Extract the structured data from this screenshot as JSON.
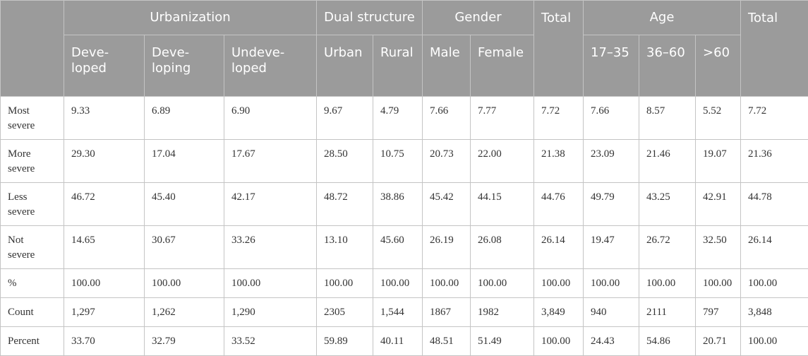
{
  "header": {
    "groups": {
      "urbanization": "Urbanization",
      "dual_structure": "Dual structure",
      "gender": "Gender",
      "total1": "Total",
      "age": "Age",
      "total2": "Total"
    },
    "subheaders": {
      "developed": "Deve-\nloped",
      "developing": "Deve-\nloping",
      "undeveloped": "Undeve-\nloped",
      "urban": "Urban",
      "rural": "Rural",
      "male": "Male",
      "female": "Female",
      "age_17_35": "17–35",
      "age_36_60": "36–60",
      "age_60plus": ">60"
    }
  },
  "rows": [
    {
      "label": "Most\nsevere",
      "cells": [
        "9.33",
        "6.89",
        "6.90",
        "9.67",
        "4.79",
        "7.66",
        "7.77",
        "7.72",
        "7.66",
        "8.57",
        "5.52",
        "7.72"
      ]
    },
    {
      "label": "More\nsevere",
      "cells": [
        "29.30",
        "17.04",
        "17.67",
        "28.50",
        "10.75",
        "20.73",
        "22.00",
        "21.38",
        "23.09",
        "21.46",
        "19.07",
        "21.36"
      ]
    },
    {
      "label": "Less\nsevere",
      "cells": [
        "46.72",
        "45.40",
        "42.17",
        "48.72",
        "38.86",
        "45.42",
        "44.15",
        "44.76",
        "49.79",
        "43.25",
        "42.91",
        "44.78"
      ]
    },
    {
      "label": "Not\nsevere",
      "cells": [
        "14.65",
        "30.67",
        "33.26",
        "13.10",
        "45.60",
        "26.19",
        "26.08",
        "26.14",
        "19.47",
        "26.72",
        "32.50",
        "26.14"
      ]
    },
    {
      "label": "%",
      "cells": [
        "100.00",
        "100.00",
        "100.00",
        "100.00",
        "100.00",
        "100.00",
        "100.00",
        "100.00",
        "100.00",
        "100.00",
        "100.00",
        "100.00"
      ]
    },
    {
      "label": "Count",
      "cells": [
        "1,297",
        "1,262",
        "1,290",
        "2305",
        "1,544",
        "1867",
        "1982",
        "3,849",
        "940",
        "2111",
        "797",
        "3,848"
      ]
    },
    {
      "label": "Percent",
      "cells": [
        "33.70",
        "32.79",
        "33.52",
        "59.89",
        "40.11",
        "48.51",
        "51.49",
        "100.00",
        "24.43",
        "54.86",
        "20.71",
        "100.00"
      ]
    }
  ]
}
